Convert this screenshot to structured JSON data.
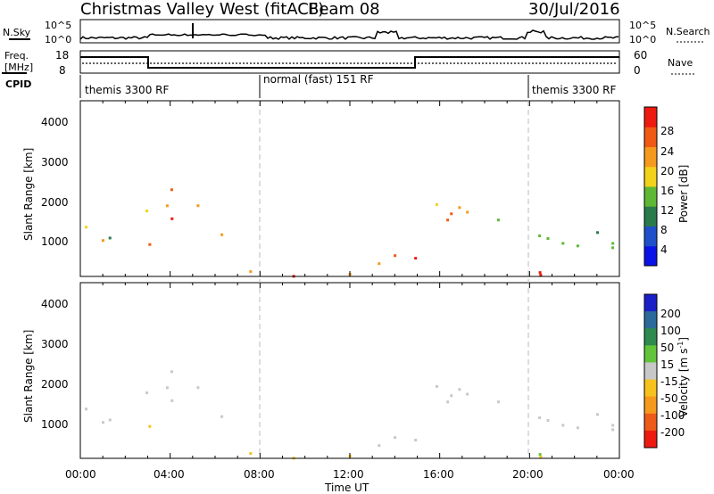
{
  "header": {
    "station": "Christmas Valley West (fitACF)",
    "beam": "Beam 08",
    "date": "30/Jul/2016"
  },
  "summary_panel": {
    "nsky_label": "N.Sky",
    "nsky_ticks": [
      "10^5",
      "10^0"
    ],
    "nsearch_label": "N.Search",
    "nsearch_ticks": [
      "10^5",
      "10^0"
    ],
    "freq_label_1": "Freq.",
    "freq_label_2": "[MHz]",
    "freq_ticks": [
      "18",
      "8"
    ],
    "nave_label": "Nave",
    "nave_ticks": [
      "60",
      "0"
    ],
    "cpid_label": "CPID",
    "cpid_segments": [
      {
        "label": "themis 3300 RF",
        "start_h": 0,
        "end_h": 8
      },
      {
        "label": "normal (fast) 151 RF",
        "start_h": 8,
        "end_h": 20
      },
      {
        "label": "themis 3300 RF",
        "start_h": 20,
        "end_h": 24
      }
    ]
  },
  "power_panel": {
    "ylabel": "Slant Range [km]",
    "yticks": [
      "4000",
      "3000",
      "2000",
      "1000"
    ],
    "colorbar_label": "Power [dB]",
    "colorbar_ticks": [
      "28",
      "24",
      "20",
      "16",
      "12",
      "8",
      "4"
    ],
    "colors": [
      "#0b12e6",
      "#1f4fc9",
      "#2b7a4b",
      "#5fb833",
      "#f2d21a",
      "#f59a1c",
      "#f05a14",
      "#ee1a10"
    ]
  },
  "velocity_panel": {
    "ylabel": "Slant Range [km]",
    "yticks": [
      "4000",
      "3000",
      "2000",
      "1000"
    ],
    "colorbar_label": "Velocity [m s",
    "colorbar_label_sup": "-1",
    "colorbar_label_end": "]",
    "colorbar_ticks": [
      "200",
      "100",
      "50",
      "15",
      "-15",
      "-50",
      "-100",
      "-200"
    ],
    "colors": [
      "#1b1fc8",
      "#2c6a9c",
      "#2e8a4e",
      "#62c43a",
      "#c8c8c8",
      "#f7c21e",
      "#f59a1c",
      "#ee5a18",
      "#ee1a10"
    ],
    "ground_color": "#c0c0c0"
  },
  "xaxis": {
    "label": "Time UT",
    "ticks": [
      "00:00",
      "04:00",
      "08:00",
      "12:00",
      "16:00",
      "20:00",
      "00:00"
    ]
  },
  "chart_data": {
    "type": "heatmap",
    "x_range_hours": [
      0,
      24
    ],
    "y_range_km": [
      180,
      4500
    ],
    "scatter_regions": [
      {
        "t0": 0.2,
        "t1": 2.2,
        "r0": 900,
        "r1": 1900,
        "power": 16,
        "velocity": 0
      },
      {
        "t0": 2.3,
        "t1": 5.5,
        "r0": 1500,
        "r1": 2500,
        "power": 24,
        "velocity": 0
      },
      {
        "t0": 3.0,
        "t1": 4.5,
        "r0": 600,
        "r1": 1000,
        "power": 20,
        "velocity": -50
      },
      {
        "t0": 5.5,
        "t1": 6.8,
        "r0": 700,
        "r1": 1400,
        "power": 22,
        "velocity": 0
      },
      {
        "t0": 6.8,
        "t1": 20.5,
        "r0": 200,
        "r1": 450,
        "power": 26,
        "velocity": 15
      },
      {
        "t0": 13.0,
        "t1": 15.5,
        "r0": 500,
        "r1": 1400,
        "power": 26,
        "velocity": 0
      },
      {
        "t0": 15.5,
        "t1": 18.5,
        "r0": 800,
        "r1": 2000,
        "power": 22,
        "velocity": 0
      },
      {
        "t0": 18.5,
        "t1": 24.0,
        "r0": 900,
        "r1": 1900,
        "power": 16,
        "velocity": 0
      }
    ]
  }
}
